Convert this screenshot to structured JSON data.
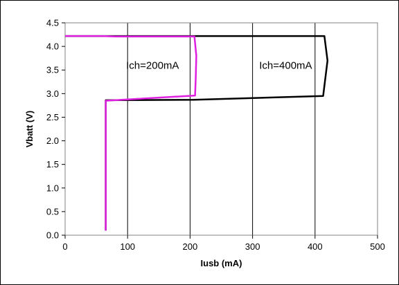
{
  "chart_data": {
    "type": "line",
    "title": "",
    "xlabel": "Iusb (mA)",
    "ylabel": "Vbatt (V)",
    "xlim": [
      0,
      500
    ],
    "ylim": [
      0.0,
      4.5
    ],
    "xticks": [
      0,
      100,
      200,
      300,
      400,
      500
    ],
    "yticks": [
      "0.0",
      "0.5",
      "1.0",
      "1.5",
      "2.0",
      "2.5",
      "3.0",
      "3.5",
      "4.0",
      "4.5"
    ],
    "grid": "vertical",
    "legend": "none",
    "series": [
      {
        "color": "#000000",
        "points": [
          [
            0,
            4.22
          ],
          [
            415,
            4.22
          ],
          [
            420,
            3.7
          ],
          [
            413,
            2.95
          ],
          [
            206,
            2.87
          ],
          [
            65,
            2.86
          ],
          [
            65,
            0.1
          ]
        ]
      },
      {
        "color": "#e020e0",
        "points": [
          [
            0,
            4.22
          ],
          [
            60,
            4.22
          ],
          [
            80,
            4.21
          ],
          [
            207,
            4.21
          ],
          [
            210,
            3.8
          ],
          [
            209,
            3.3
          ],
          [
            208,
            2.96
          ],
          [
            65,
            2.85
          ],
          [
            65,
            0.1
          ]
        ]
      }
    ],
    "annotations": [
      {
        "text": "Ich=200mA",
        "x": 140,
        "y": 3.6
      },
      {
        "text": "Ich=400mA",
        "x": 353,
        "y": 3.6
      }
    ]
  }
}
